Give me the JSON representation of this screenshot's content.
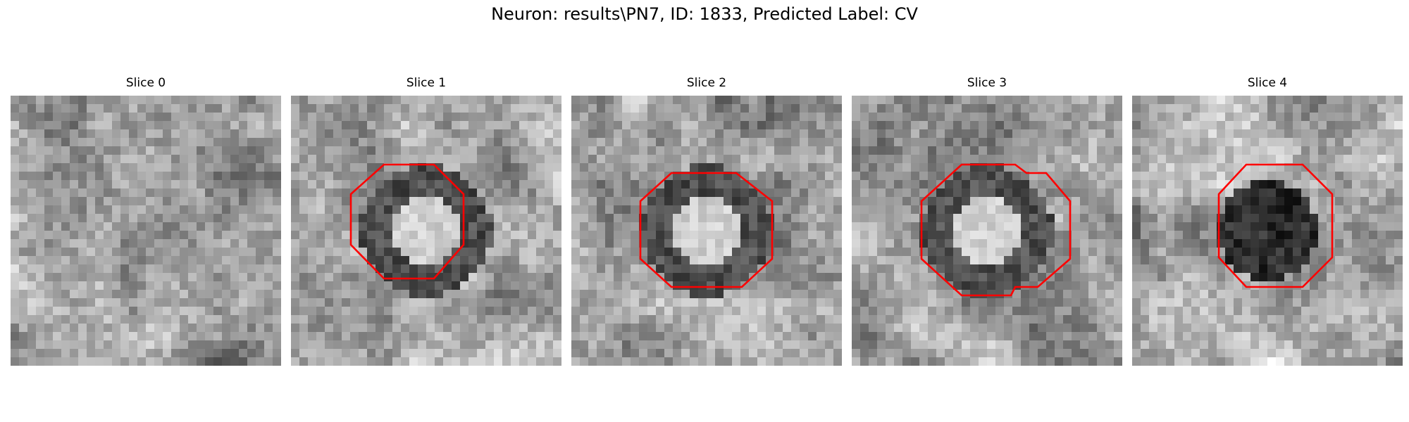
{
  "figure": {
    "title": "Neuron: results\\PN7, ID: 1833, Predicted Label: CV"
  },
  "panels": [
    {
      "title": "Slice 0",
      "seed": 11,
      "ring": "none",
      "outline": false
    },
    {
      "title": "Slice 1",
      "seed": 23,
      "ring": "dark-ring-bright-center",
      "outline": true
    },
    {
      "title": "Slice 2",
      "seed": 37,
      "ring": "dark-ring-bright-center",
      "outline": true
    },
    {
      "title": "Slice 3",
      "seed": 53,
      "ring": "dark-ring-bright-center",
      "outline": true
    },
    {
      "title": "Slice 4",
      "seed": 71,
      "ring": "dark-blob",
      "outline": true
    }
  ],
  "colors": {
    "outline": "#ff0000",
    "background": "#ffffff"
  }
}
